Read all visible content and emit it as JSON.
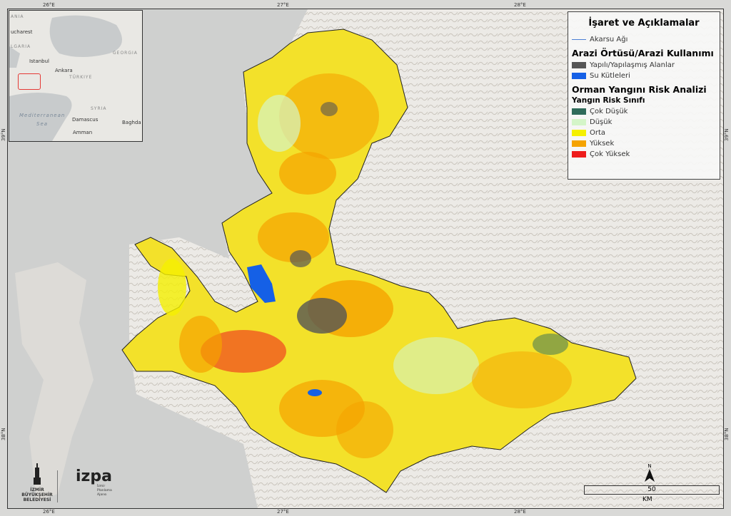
{
  "graticule": {
    "lon": [
      "26°E",
      "27°E",
      "28°E"
    ],
    "lat": [
      "39°N",
      "38°N"
    ]
  },
  "inset": {
    "cities": [
      "ucharest",
      "Istanbul",
      "Ankara",
      "Damascus",
      "Amman",
      "Baghda"
    ],
    "countries": [
      "ANIA",
      "LGARIA",
      "TÜRKIYE",
      "GEORGIA",
      "SYRIA"
    ],
    "sea": [
      "Mediterranean",
      "Sea"
    ],
    "highlight_color": "#e53935"
  },
  "legend": {
    "title": "İşaret ve Açıklamalar",
    "river": {
      "label": "Akarsu Ağı",
      "color": "#4a7fd4"
    },
    "landcover_heading": "Arazi Örtüsü/Arazi Kullanımı",
    "landcover": [
      {
        "label": "Yapılı/Yapılaşmış Alanlar",
        "color": "#555555"
      },
      {
        "label": "Su Kütleleri",
        "color": "#1560e6"
      }
    ],
    "risk_heading": "Orman Yangını Risk Analizi",
    "risk_subheading": "Yangın Risk Sınıfı",
    "risk_classes": [
      {
        "label": "Çok Düşük",
        "color": "#2f6b5a"
      },
      {
        "label": "Düşük",
        "color": "#d4f5c8"
      },
      {
        "label": "Orta",
        "color": "#f5f000"
      },
      {
        "label": "Yüksek",
        "color": "#f5a300"
      },
      {
        "label": "Çok Yüksek",
        "color": "#ee1c1c"
      }
    ]
  },
  "north_label": "N",
  "scale": {
    "value": "50",
    "unit": "KM"
  },
  "logos": {
    "izmir": [
      "İZMİR",
      "BÜYÜKŞEHİR",
      "BELEDİYESİ"
    ],
    "izpa": [
      "izpa",
      "İzmir",
      "Planlama",
      "Ajansı"
    ]
  }
}
